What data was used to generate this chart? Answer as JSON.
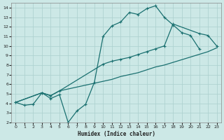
{
  "xlabel": "Humidex (Indice chaleur)",
  "xlim": [
    -0.5,
    23.5
  ],
  "ylim": [
    2,
    14.5
  ],
  "xticks": [
    0,
    1,
    2,
    3,
    4,
    5,
    6,
    7,
    8,
    9,
    10,
    11,
    12,
    13,
    14,
    15,
    16,
    17,
    18,
    19,
    20,
    21,
    22,
    23
  ],
  "yticks": [
    2,
    3,
    4,
    5,
    6,
    7,
    8,
    9,
    10,
    11,
    12,
    13,
    14
  ],
  "bg_color": "#cce8e6",
  "grid_color": "#aacfcd",
  "line_color": "#1a7070",
  "line1_x": [
    0,
    1,
    2,
    3,
    4,
    5,
    6,
    7,
    8,
    9,
    10,
    11,
    12,
    13,
    14,
    15,
    16,
    17,
    18,
    19,
    20,
    21
  ],
  "line1_y": [
    4.1,
    3.8,
    3.9,
    5.1,
    4.5,
    4.9,
    2.0,
    3.2,
    3.9,
    6.2,
    11.0,
    12.1,
    12.5,
    13.5,
    13.3,
    13.9,
    14.2,
    13.0,
    12.2,
    11.4,
    11.1,
    9.7
  ],
  "line2_x": [
    0,
    3,
    4,
    5,
    10,
    11,
    12,
    13,
    14,
    15,
    16,
    17,
    18,
    21,
    22,
    23
  ],
  "line2_y": [
    4.1,
    5.1,
    4.8,
    5.3,
    8.1,
    8.4,
    8.6,
    8.8,
    9.1,
    9.4,
    9.7,
    10.0,
    12.3,
    11.3,
    11.1,
    10.0
  ],
  "line3_x": [
    0,
    3,
    4,
    5,
    10,
    11,
    12,
    13,
    14,
    15,
    16,
    17,
    22,
    23
  ],
  "line3_y": [
    4.1,
    5.1,
    4.8,
    5.3,
    6.3,
    6.5,
    6.8,
    7.0,
    7.2,
    7.5,
    7.8,
    8.0,
    9.4,
    9.8
  ],
  "line2_has_markers": true,
  "line3_has_markers": false
}
